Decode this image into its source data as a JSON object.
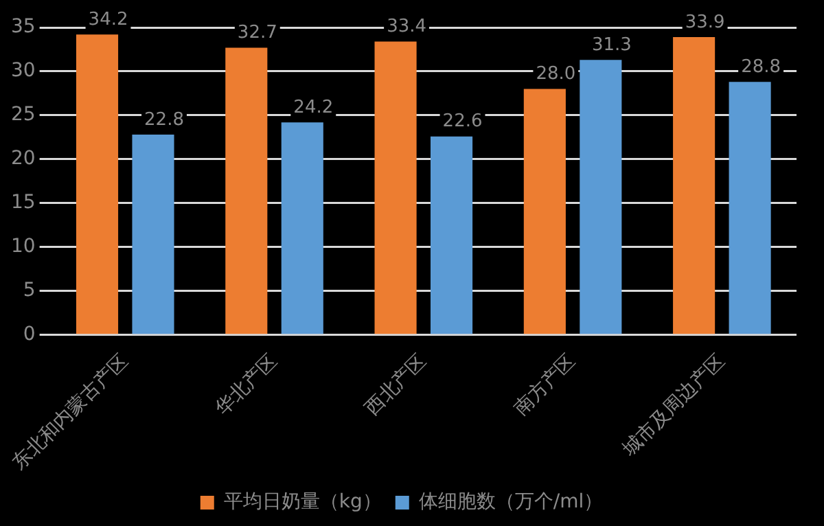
{
  "chart_data": {
    "type": "bar",
    "categories": [
      "东北和内蒙古产区",
      "华北产区",
      "西北产区",
      "南方产区",
      "城市及周边产区"
    ],
    "series": [
      {
        "name": "平均日奶量（kg）",
        "color": "#ed7d31",
        "values": [
          34.2,
          32.7,
          33.4,
          28.0,
          33.9
        ],
        "value_labels": [
          "34.2",
          "32.7",
          "33.4",
          "28.0",
          "33.9"
        ]
      },
      {
        "name": "体细胞数（万个/ml）",
        "color": "#5b9bd5",
        "values": [
          22.8,
          24.2,
          22.6,
          31.3,
          28.8
        ],
        "value_labels": [
          "22.8",
          "24.2",
          "22.6",
          "31.3",
          "28.8"
        ]
      }
    ],
    "ylim": [
      0,
      35
    ],
    "yticks": [
      0,
      5,
      10,
      15,
      20,
      25,
      30,
      35
    ],
    "grid": "y",
    "legend": "bottom"
  }
}
